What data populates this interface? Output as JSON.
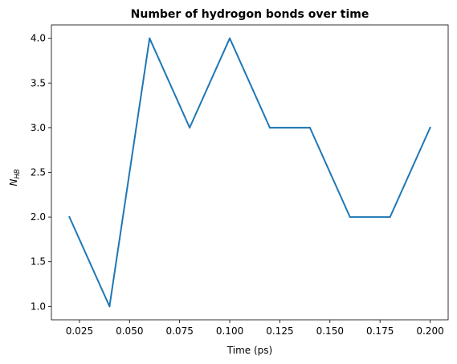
{
  "chart_data": {
    "type": "line",
    "title": "Number of hydrogon bonds over time",
    "xlabel": "Time (ps)",
    "ylabel": {
      "main": "N",
      "subscript": "HB"
    },
    "xlim": [
      0.011,
      0.209
    ],
    "ylim": [
      0.85,
      4.15
    ],
    "xticks": [
      "0.025",
      "0.050",
      "0.075",
      "0.100",
      "0.125",
      "0.150",
      "0.175",
      "0.200"
    ],
    "yticks": [
      "1.0",
      "1.5",
      "2.0",
      "2.5",
      "3.0",
      "3.5",
      "4.0"
    ],
    "grid": false,
    "series": [
      {
        "color": "#1f77b4",
        "x": [
          0.02,
          0.04,
          0.06,
          0.08,
          0.1,
          0.12,
          0.14,
          0.16,
          0.18,
          0.2
        ],
        "y": [
          2,
          1,
          4,
          3,
          4,
          3,
          3,
          2,
          2,
          3
        ]
      }
    ]
  }
}
